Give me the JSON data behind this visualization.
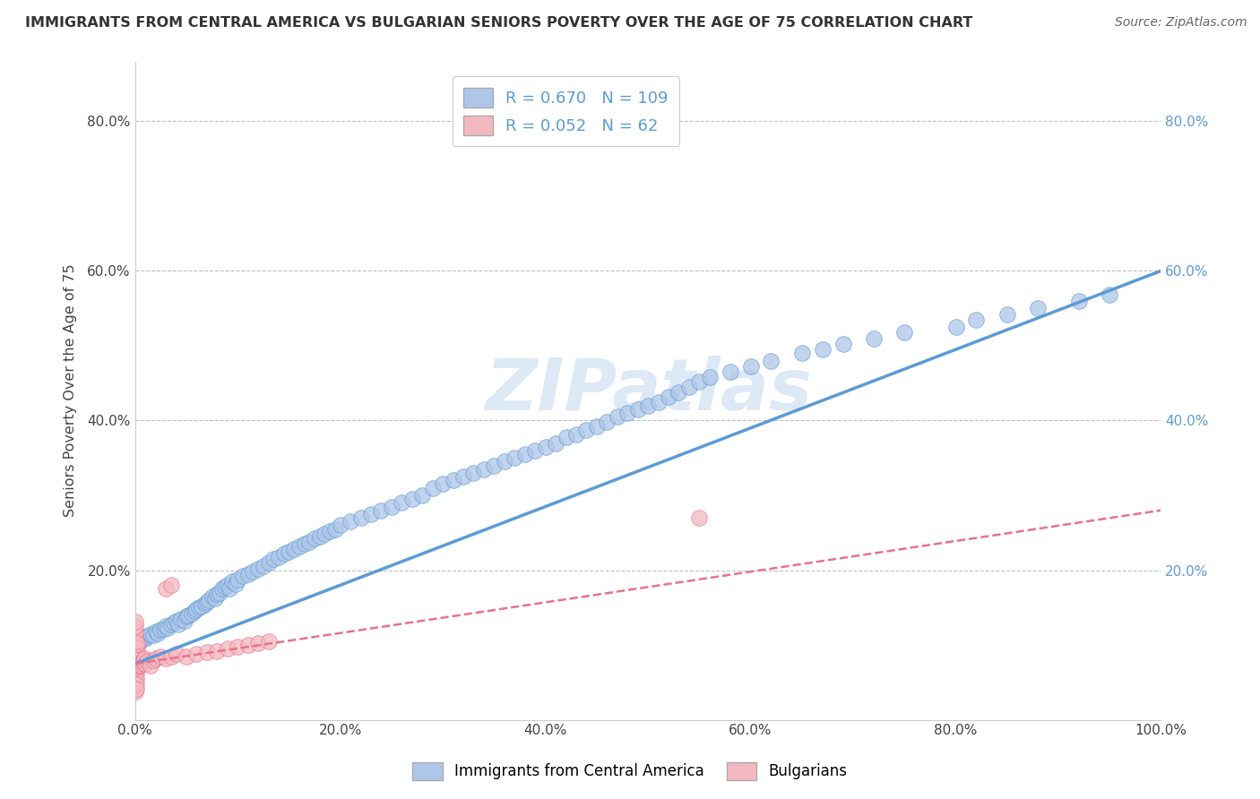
{
  "title": "IMMIGRANTS FROM CENTRAL AMERICA VS BULGARIAN SENIORS POVERTY OVER THE AGE OF 75 CORRELATION CHART",
  "source": "Source: ZipAtlas.com",
  "ylabel": "Seniors Poverty Over the Age of 75",
  "xlim": [
    0.0,
    1.0
  ],
  "ylim": [
    0.0,
    0.88
  ],
  "x_ticks": [
    0.0,
    0.2,
    0.4,
    0.6,
    0.8,
    1.0
  ],
  "x_tick_labels": [
    "0.0%",
    "20.0%",
    "40.0%",
    "60.0%",
    "80.0%",
    "100.0%"
  ],
  "y_ticks": [
    0.0,
    0.2,
    0.4,
    0.6,
    0.8
  ],
  "y_tick_labels": [
    "",
    "20.0%",
    "40.0%",
    "60.0%",
    "80.0%"
  ],
  "right_y_ticks": [
    0.2,
    0.4,
    0.6,
    0.8
  ],
  "right_y_tick_labels": [
    "20.0%",
    "40.0%",
    "60.0%",
    "80.0%"
  ],
  "legend_items": [
    {
      "label": "Immigrants from Central America",
      "R": "0.670",
      "N": "109"
    },
    {
      "label": "Bulgarians",
      "R": "0.052",
      "N": "62"
    }
  ],
  "blue_color": "#5b9bd5",
  "blue_fill": "#aec6e8",
  "pink_color": "#e8728a",
  "pink_fill": "#f4b8c1",
  "grid_color": "#c0c0c0",
  "watermark": "ZIPatlas",
  "scatter_blue": {
    "x": [
      0.005,
      0.008,
      0.01,
      0.012,
      0.015,
      0.018,
      0.02,
      0.022,
      0.025,
      0.028,
      0.03,
      0.032,
      0.035,
      0.038,
      0.04,
      0.042,
      0.045,
      0.048,
      0.05,
      0.052,
      0.055,
      0.058,
      0.06,
      0.062,
      0.065,
      0.068,
      0.07,
      0.072,
      0.075,
      0.078,
      0.08,
      0.082,
      0.085,
      0.088,
      0.09,
      0.092,
      0.095,
      0.098,
      0.1,
      0.105,
      0.11,
      0.115,
      0.12,
      0.125,
      0.13,
      0.135,
      0.14,
      0.145,
      0.15,
      0.155,
      0.16,
      0.165,
      0.17,
      0.175,
      0.18,
      0.185,
      0.19,
      0.195,
      0.2,
      0.21,
      0.22,
      0.23,
      0.24,
      0.25,
      0.26,
      0.27,
      0.28,
      0.29,
      0.3,
      0.31,
      0.32,
      0.33,
      0.34,
      0.35,
      0.36,
      0.37,
      0.38,
      0.39,
      0.4,
      0.41,
      0.42,
      0.43,
      0.44,
      0.45,
      0.46,
      0.47,
      0.48,
      0.49,
      0.5,
      0.51,
      0.52,
      0.53,
      0.54,
      0.55,
      0.56,
      0.58,
      0.6,
      0.62,
      0.65,
      0.67,
      0.69,
      0.72,
      0.75,
      0.8,
      0.82,
      0.85,
      0.88,
      0.92,
      0.95
    ],
    "y": [
      0.105,
      0.11,
      0.108,
      0.112,
      0.115,
      0.113,
      0.118,
      0.116,
      0.12,
      0.122,
      0.125,
      0.123,
      0.128,
      0.13,
      0.132,
      0.128,
      0.135,
      0.133,
      0.138,
      0.14,
      0.142,
      0.145,
      0.148,
      0.15,
      0.152,
      0.155,
      0.158,
      0.16,
      0.165,
      0.162,
      0.168,
      0.17,
      0.175,
      0.178,
      0.18,
      0.175,
      0.185,
      0.182,
      0.188,
      0.192,
      0.195,
      0.198,
      0.202,
      0.205,
      0.21,
      0.215,
      0.218,
      0.222,
      0.225,
      0.228,
      0.232,
      0.235,
      0.238,
      0.242,
      0.245,
      0.248,
      0.252,
      0.255,
      0.26,
      0.265,
      0.27,
      0.275,
      0.28,
      0.285,
      0.29,
      0.295,
      0.3,
      0.31,
      0.315,
      0.32,
      0.325,
      0.33,
      0.335,
      0.34,
      0.345,
      0.35,
      0.355,
      0.36,
      0.365,
      0.37,
      0.378,
      0.382,
      0.388,
      0.392,
      0.398,
      0.405,
      0.41,
      0.415,
      0.42,
      0.425,
      0.432,
      0.438,
      0.445,
      0.452,
      0.458,
      0.465,
      0.472,
      0.48,
      0.49,
      0.495,
      0.502,
      0.51,
      0.518,
      0.525,
      0.535,
      0.542,
      0.55,
      0.56,
      0.568
    ]
  },
  "scatter_pink": {
    "x": [
      0.0,
      0.0,
      0.0,
      0.0,
      0.0,
      0.0,
      0.0,
      0.0,
      0.0,
      0.0,
      0.0,
      0.0,
      0.0,
      0.0,
      0.0,
      0.001,
      0.001,
      0.001,
      0.001,
      0.001,
      0.001,
      0.001,
      0.001,
      0.001,
      0.002,
      0.002,
      0.002,
      0.002,
      0.002,
      0.002,
      0.003,
      0.003,
      0.003,
      0.004,
      0.004,
      0.005,
      0.005,
      0.006,
      0.007,
      0.008,
      0.009,
      0.01,
      0.012,
      0.015,
      0.018,
      0.02,
      0.025,
      0.03,
      0.035,
      0.04,
      0.05,
      0.06,
      0.07,
      0.08,
      0.09,
      0.1,
      0.11,
      0.12,
      0.13,
      0.03,
      0.035,
      0.55
    ],
    "y": [
      0.065,
      0.072,
      0.078,
      0.085,
      0.092,
      0.098,
      0.105,
      0.112,
      0.058,
      0.052,
      0.045,
      0.038,
      0.118,
      0.125,
      0.131,
      0.068,
      0.075,
      0.082,
      0.088,
      0.095,
      0.062,
      0.055,
      0.048,
      0.042,
      0.07,
      0.077,
      0.083,
      0.09,
      0.097,
      0.103,
      0.072,
      0.079,
      0.085,
      0.073,
      0.08,
      0.074,
      0.081,
      0.076,
      0.078,
      0.08,
      0.082,
      0.075,
      0.078,
      0.072,
      0.08,
      0.082,
      0.085,
      0.082,
      0.085,
      0.088,
      0.085,
      0.088,
      0.09,
      0.092,
      0.095,
      0.098,
      0.1,
      0.103,
      0.105,
      0.175,
      0.18,
      0.27
    ]
  },
  "blue_line": {
    "x0": 0.0,
    "x1": 1.0,
    "y0": 0.075,
    "y1": 0.6
  },
  "pink_line": {
    "x0": 0.0,
    "x1": 1.0,
    "y0": 0.075,
    "y1": 0.28
  }
}
